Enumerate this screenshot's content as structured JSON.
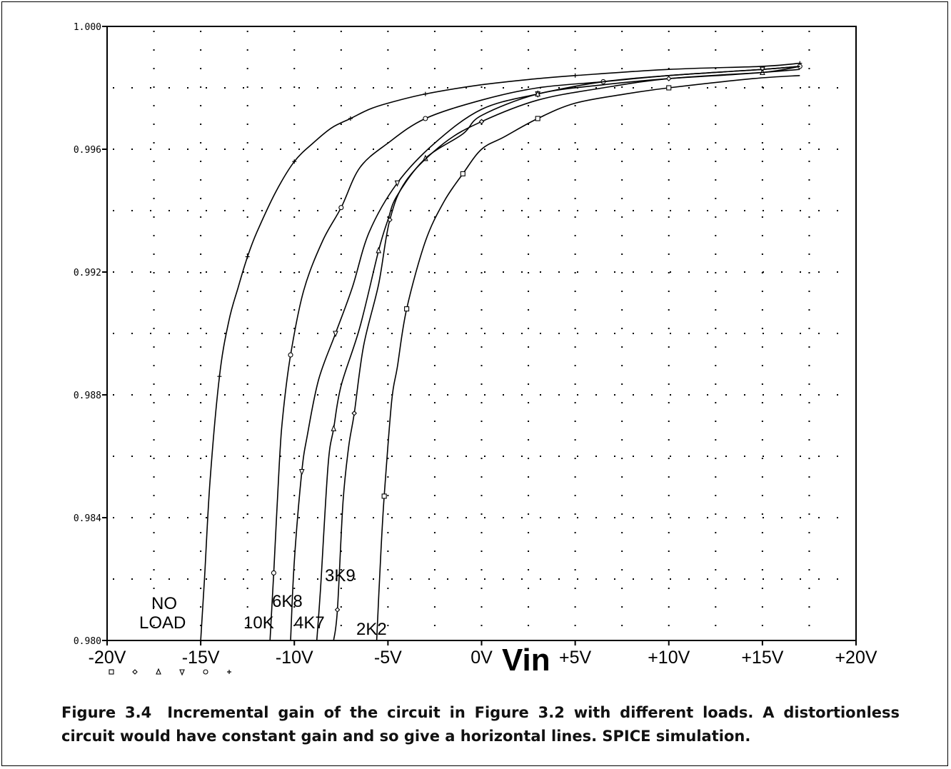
{
  "caption": {
    "number": "Figure 3.4",
    "text": "Incremental gain of the circuit in Figure 3.2 with different loads. A distortionless circuit would have constant gain and so give a horizontal lines. SPICE simulation."
  },
  "chart_data": {
    "type": "line",
    "xlabel": "Vin",
    "ylabel": "",
    "xlim": [
      -20,
      20
    ],
    "ylim": [
      0.98,
      1.0
    ],
    "grid": true,
    "x_ticks": [
      -20,
      -15,
      -10,
      -5,
      0,
      5,
      10,
      15,
      20
    ],
    "x_tick_labels": [
      "-20V",
      "-15V",
      "-10V",
      "-5V",
      "0V",
      "+5V",
      "+10V",
      "+15V",
      "+20V"
    ],
    "y_ticks": [
      0.98,
      0.984,
      0.988,
      0.992,
      0.996,
      1.0
    ],
    "y_tick_labels": [
      "0.980",
      "0.984",
      "0.988",
      "0.992",
      "0.996",
      "1.000"
    ],
    "annotations": [
      "NO",
      "LOAD",
      "10K",
      "6K8",
      "4K7",
      "3K9",
      "2K2"
    ],
    "series": [
      {
        "name": "NO LOAD",
        "marker": "plus",
        "x": [
          -15.0,
          -14.8,
          -14.5,
          -14.0,
          -13.5,
          -13.0,
          -12.5,
          -12.0,
          -11.0,
          -10.0,
          -9.0,
          -8.0,
          -7.0,
          -6.0,
          -5.0,
          -3.0,
          0.0,
          3.0,
          5.0,
          10.0,
          15.0,
          17.0
        ],
        "y": [
          0.98,
          0.982,
          0.9852,
          0.9886,
          0.9904,
          0.9915,
          0.9925,
          0.9933,
          0.9946,
          0.9956,
          0.9962,
          0.9967,
          0.997,
          0.9973,
          0.9975,
          0.9978,
          0.9981,
          0.9983,
          0.9984,
          0.9986,
          0.9987,
          0.9988
        ]
      },
      {
        "name": "10K",
        "marker": "circle",
        "x": [
          -11.3,
          -11.1,
          -10.8,
          -10.6,
          -10.2,
          -9.5,
          -8.5,
          -7.5,
          -6.5,
          -5.0,
          -3.0,
          0.0,
          3.0,
          6.5,
          10.0,
          15.0,
          17.0
        ],
        "y": [
          0.98,
          0.9822,
          0.9858,
          0.9874,
          0.9893,
          0.9914,
          0.993,
          0.9941,
          0.9954,
          0.9962,
          0.997,
          0.9976,
          0.998,
          0.9982,
          0.9984,
          0.9986,
          0.9987
        ]
      },
      {
        "name": "6K8",
        "marker": "triangle-down",
        "x": [
          -10.2,
          -10.0,
          -9.6,
          -9.3,
          -8.7,
          -7.8,
          -6.9,
          -6.0,
          -4.5,
          -2.5,
          0.0,
          3.0,
          6.5,
          10.0,
          15.0,
          17.0
        ],
        "y": [
          0.98,
          0.9826,
          0.9855,
          0.9867,
          0.9885,
          0.99,
          0.9915,
          0.9933,
          0.9949,
          0.9962,
          0.9973,
          0.9978,
          0.9982,
          0.9984,
          0.9986,
          0.9987
        ]
      },
      {
        "name": "4K7",
        "marker": "triangle-up",
        "x": [
          -8.8,
          -8.6,
          -8.2,
          -7.9,
          -7.5,
          -6.5,
          -5.5,
          -5.0,
          -4.5,
          -3.0,
          -1.0,
          0.0,
          3.0,
          6.5,
          10.0,
          15.0,
          17.0
        ],
        "y": [
          0.98,
          0.9817,
          0.9857,
          0.9869,
          0.9883,
          0.9902,
          0.9927,
          0.9937,
          0.9945,
          0.9957,
          0.9965,
          0.9971,
          0.9978,
          0.9981,
          0.9983,
          0.9985,
          0.9987
        ]
      },
      {
        "name": "3K9",
        "marker": "diamond",
        "x": [
          -7.9,
          -7.7,
          -7.4,
          -7.1,
          -6.8,
          -6.3,
          -5.5,
          -4.9,
          -4.0,
          -2.0,
          0.0,
          3.0,
          6.5,
          10.0,
          15.0,
          17.0
        ],
        "y": [
          0.98,
          0.981,
          0.9845,
          0.9863,
          0.9874,
          0.9896,
          0.9916,
          0.9937,
          0.995,
          0.9962,
          0.9969,
          0.9976,
          0.998,
          0.9983,
          0.9985,
          0.9986
        ]
      },
      {
        "name": "2K2",
        "marker": "square",
        "x": [
          -5.6,
          -5.4,
          -5.2,
          -4.8,
          -4.5,
          -4.0,
          -3.0,
          -2.0,
          -1.0,
          0.0,
          1.2,
          3.0,
          5.0,
          7.7,
          10.0,
          14.5,
          17.0
        ],
        "y": [
          0.98,
          0.9826,
          0.9847,
          0.9878,
          0.9889,
          0.9908,
          0.993,
          0.9943,
          0.9952,
          0.996,
          0.9964,
          0.997,
          0.9975,
          0.9978,
          0.998,
          0.9983,
          0.9984
        ]
      }
    ]
  }
}
